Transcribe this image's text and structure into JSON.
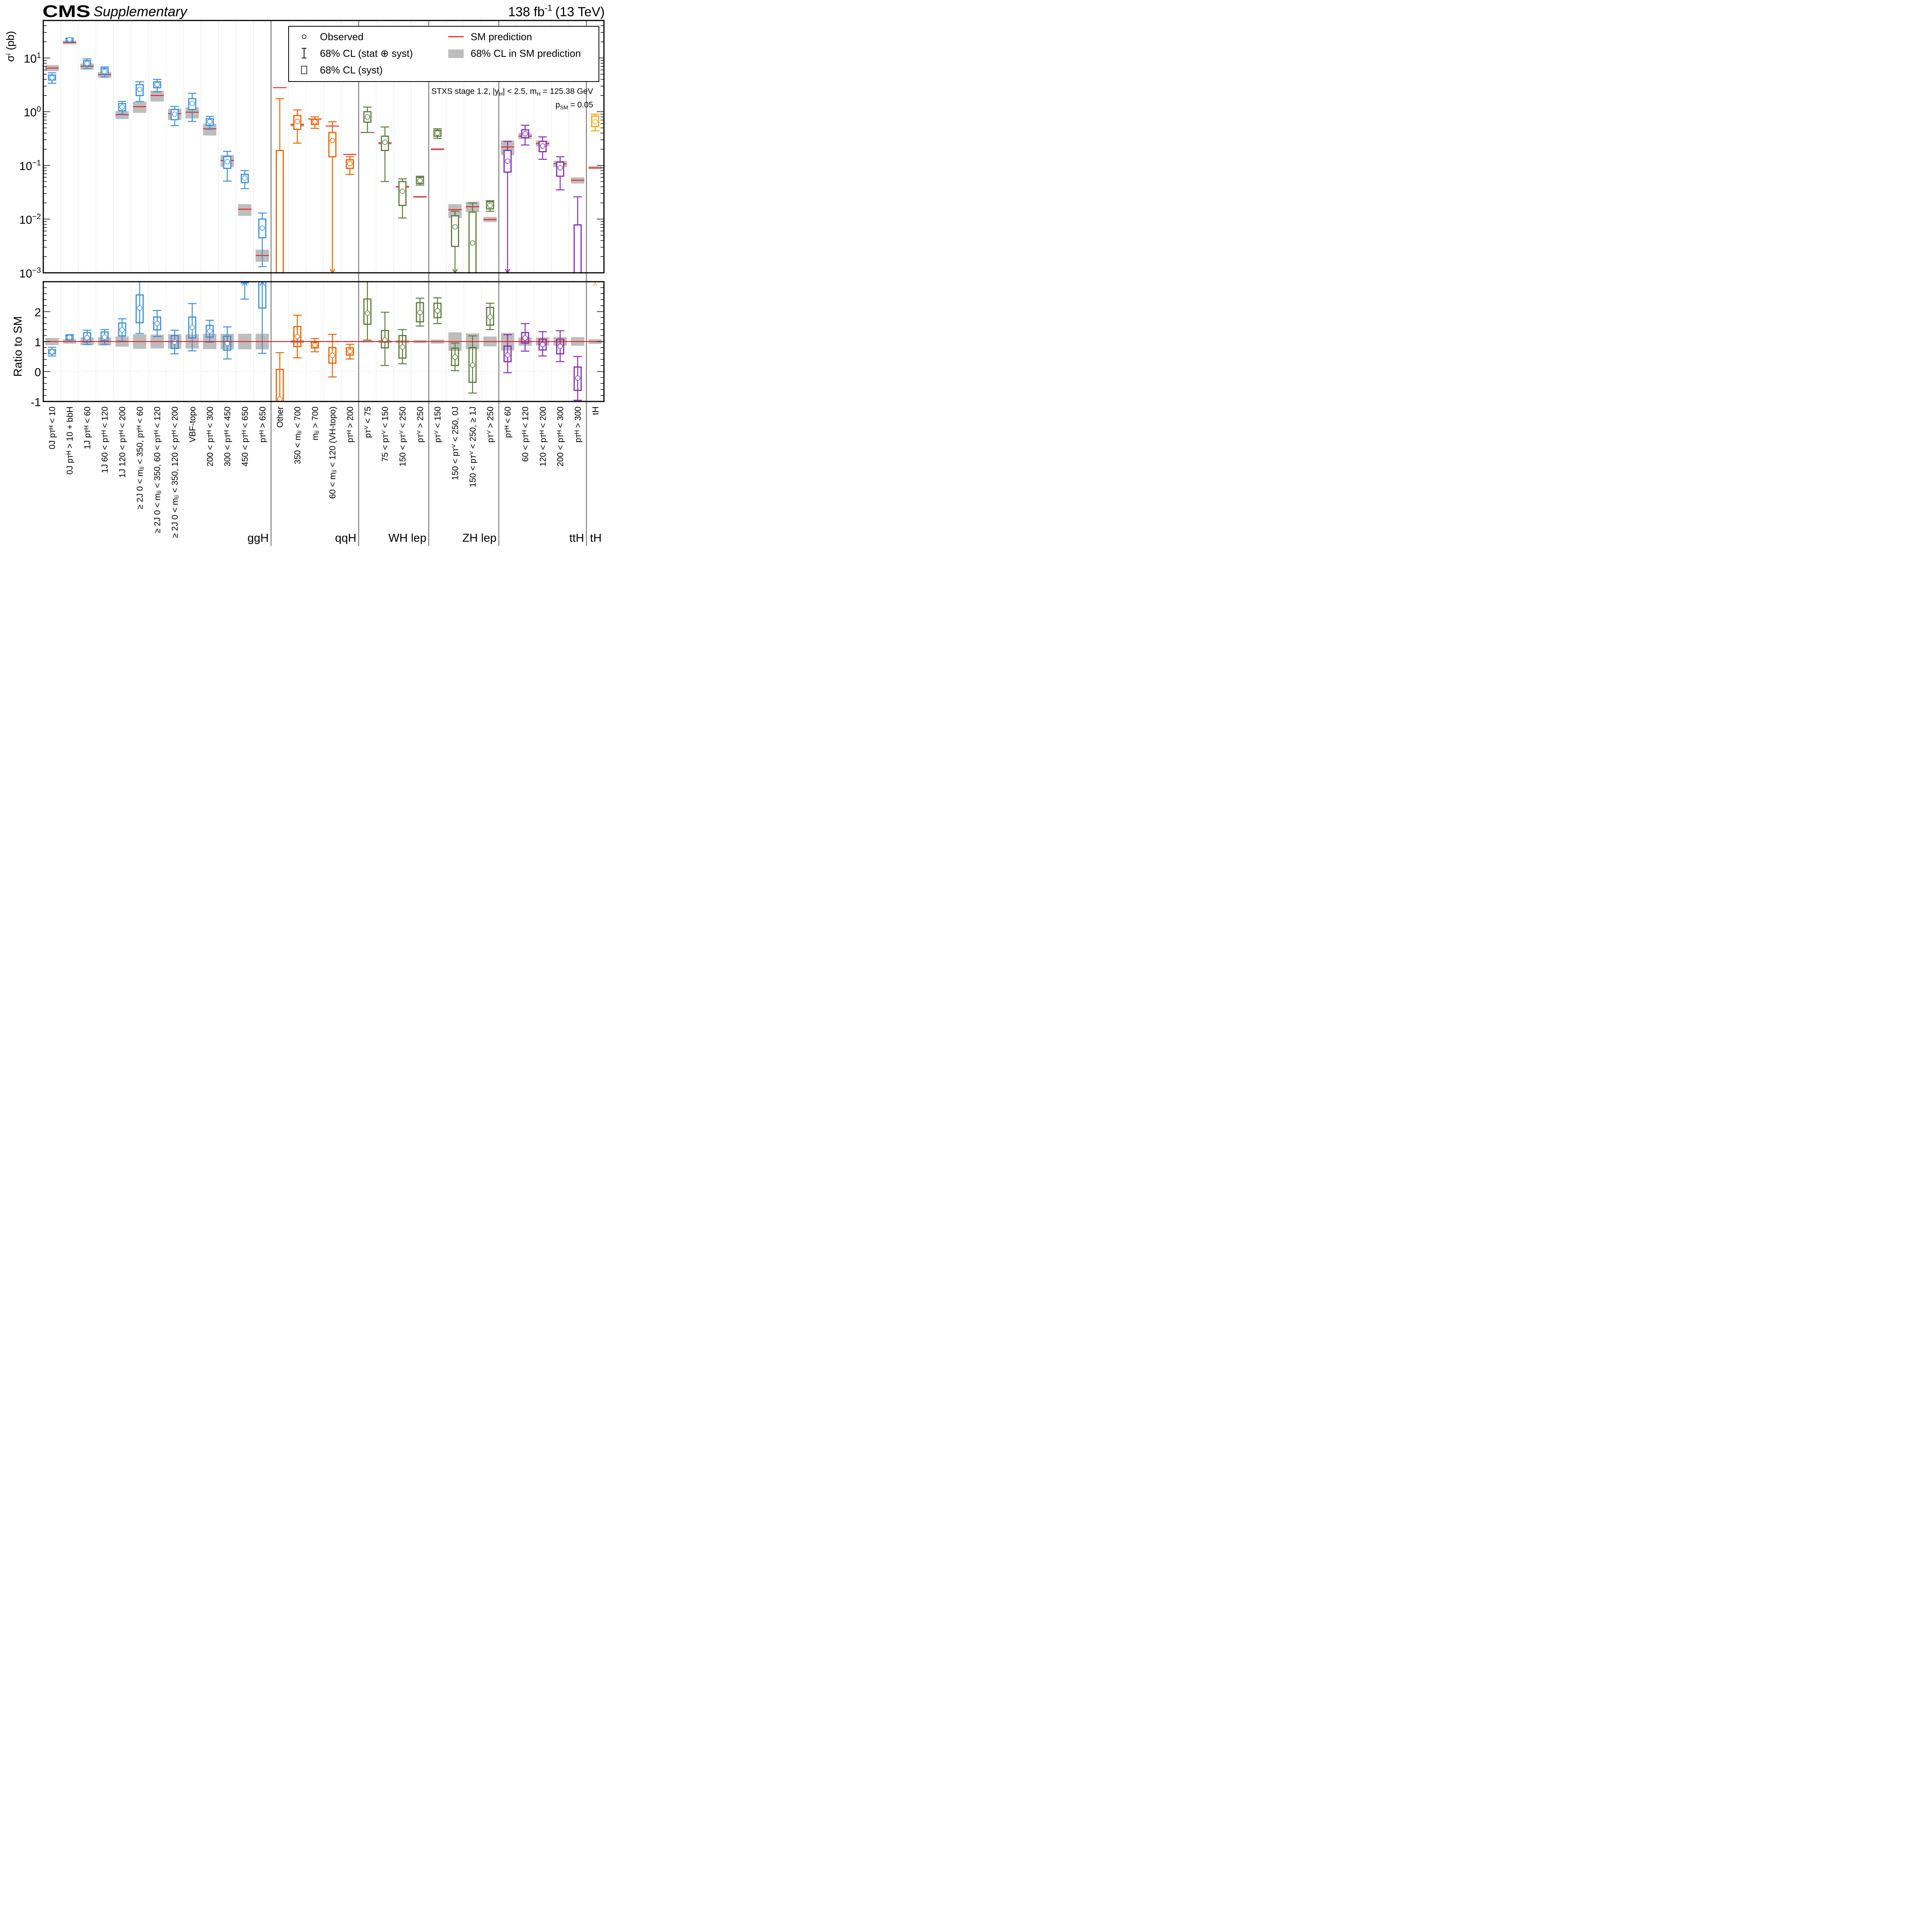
{
  "header": {
    "experiment": "CMS",
    "label": "Supplementary",
    "lumi": "138 fb",
    "lumi_sup": "-1",
    "energy": "(13 TeV)"
  },
  "legend": {
    "observed": "Observed",
    "total": "68% CL (stat ⊕ syst)",
    "syst": "68% CL (syst)",
    "sm": "SM prediction",
    "sm_unc": "68% CL in SM prediction"
  },
  "annotation": {
    "line1_pre": "STXS stage 1.2, |y",
    "line1_sub1": "H",
    "line1_mid": "| < 2.5, m",
    "line1_sub2": "H",
    "line1_post": " = 125.38 GeV",
    "line2_pre": "p",
    "line2_sub": "SM",
    "line2_post": " = 0.05"
  },
  "colors": {
    "ggH": "#3f90da",
    "qqH": "#e76300",
    "WH lep": "#5e7a3c",
    "ZH lep": "#5e7a3c",
    "ttH": "#832db6",
    "tH": "#f5a900",
    "sm_line": "#ff0000",
    "sm_band": "#bdbdbd"
  },
  "chart_data": [
    {
      "type": "scatter",
      "panel": "cross-section",
      "ylabel": "σ^i (pb)",
      "yscale": "log",
      "ylim": [
        0.001,
        50
      ],
      "yticks": [
        "10^1",
        "10^0",
        "10^-1",
        "10^-2",
        "10^-3"
      ],
      "grid": false
    },
    {
      "type": "scatter",
      "panel": "ratio",
      "ylabel": "Ratio to SM",
      "ylim": [
        -1,
        3
      ],
      "yticks": [
        "3",
        "2",
        "1",
        "0",
        "-1"
      ]
    }
  ],
  "groups": [
    {
      "name": "ggH",
      "start": 0,
      "end": 12
    },
    {
      "name": "qqH",
      "start": 13,
      "end": 17
    },
    {
      "name": "WH lep",
      "start": 18,
      "end": 21
    },
    {
      "name": "ZH lep",
      "start": 22,
      "end": 25
    },
    {
      "name": "ttH",
      "start": 26,
      "end": 30
    },
    {
      "name": "tH",
      "start": 31,
      "end": 31
    }
  ],
  "bins": [
    {
      "label": "0J pT^H < 10",
      "group": "ggH",
      "obs": 4.3,
      "tot": [
        3.4,
        5.3
      ],
      "syst": [
        3.9,
        4.8
      ],
      "sm": 6.5,
      "sm_band": [
        5.7,
        7.4
      ],
      "r": 0.66,
      "r_tot": [
        0.52,
        0.81
      ],
      "r_syst": [
        0.59,
        0.73
      ],
      "r_band": [
        0.88,
        1.12
      ]
    },
    {
      "label": "0J pT^H > 10 + bbH",
      "group": "ggH",
      "obs": 22,
      "tot": [
        20,
        23.5
      ],
      "syst": [
        20.8,
        23
      ],
      "sm": 19.5,
      "sm_band": [
        18,
        21
      ],
      "r": 1.14,
      "r_tot": [
        1.05,
        1.23
      ],
      "r_syst": [
        1.08,
        1.2
      ],
      "r_band": [
        0.93,
        1.08
      ]
    },
    {
      "label": "1J pT^H < 60",
      "group": "ggH",
      "obs": 7.9,
      "tot": [
        6.3,
        9.6
      ],
      "syst": [
        7.2,
        8.9
      ],
      "sm": 7.0,
      "sm_band": [
        6.1,
        7.9
      ],
      "r": 1.13,
      "r_tot": [
        0.9,
        1.38
      ],
      "r_syst": [
        0.99,
        1.3
      ],
      "r_band": [
        0.88,
        1.14
      ]
    },
    {
      "label": "1J 60 < pT^H < 120",
      "group": "ggH",
      "obs": 5.6,
      "tot": [
        4.4,
        6.8
      ],
      "syst": [
        5.0,
        6.4
      ],
      "sm": 4.9,
      "sm_band": [
        4.3,
        5.5
      ],
      "r": 1.15,
      "r_tot": [
        0.91,
        1.4
      ],
      "r_syst": [
        1.03,
        1.32
      ],
      "r_band": [
        0.87,
        1.14
      ]
    },
    {
      "label": "1J 120 < pT^H < 200",
      "group": "ggH",
      "obs": 1.22,
      "tot": [
        0.9,
        1.55
      ],
      "syst": [
        1.04,
        1.42
      ],
      "sm": 0.88,
      "sm_band": [
        0.73,
        1.02
      ],
      "r": 1.39,
      "r_tot": [
        1.02,
        1.76
      ],
      "r_syst": [
        1.19,
        1.62
      ],
      "r_band": [
        0.83,
        1.17
      ]
    },
    {
      "label": "≥ 2J 0 < m_jj < 350, pT^H < 60",
      "group": "ggH",
      "obs": 2.6,
      "tot": [
        1.55,
        3.6
      ],
      "syst": [
        2.0,
        3.2
      ],
      "sm": 1.24,
      "sm_band": [
        0.95,
        1.53
      ],
      "r": 2.12,
      "r_tot": [
        1.27,
        3.0
      ],
      "r_syst": [
        1.63,
        2.56
      ],
      "r_band": [
        0.76,
        1.24
      ]
    },
    {
      "label": "≥ 2J 0 < m_jj < 350, 60 < pT^H < 120",
      "group": "ggH",
      "obs": 3.2,
      "tot": [
        2.35,
        4.0
      ],
      "syst": [
        2.8,
        3.6
      ],
      "sm": 2.0,
      "sm_band": [
        1.55,
        2.45
      ],
      "r": 1.6,
      "r_tot": [
        1.17,
        2.04
      ],
      "r_syst": [
        1.39,
        1.82
      ],
      "r_band": [
        0.77,
        1.23
      ]
    },
    {
      "label": "≥ 2J 0 < m_jj < 350, 120 < pT^H < 200",
      "group": "ggH",
      "obs": 0.9,
      "tot": [
        0.55,
        1.25
      ],
      "syst": [
        0.71,
        1.1
      ],
      "sm": 0.92,
      "sm_band": [
        0.7,
        1.14
      ],
      "r": 0.98,
      "r_tot": [
        0.59,
        1.38
      ],
      "r_syst": [
        0.77,
        1.2
      ],
      "r_band": [
        0.76,
        1.24
      ]
    },
    {
      "label": "VBF-topo",
      "group": "ggH",
      "obs": 1.42,
      "tot": [
        0.66,
        2.2
      ],
      "syst": [
        1.1,
        1.75
      ],
      "sm": 0.98,
      "sm_band": [
        0.75,
        1.21
      ],
      "r": 1.47,
      "r_tot": [
        0.69,
        2.27
      ],
      "r_syst": [
        1.12,
        1.82
      ],
      "r_band": [
        0.77,
        1.24
      ]
    },
    {
      "label": "200 < pT^H < 300",
      "group": "ggH",
      "obs": 0.65,
      "tot": [
        0.47,
        0.82
      ],
      "syst": [
        0.56,
        0.74
      ],
      "sm": 0.48,
      "sm_band": [
        0.36,
        0.6
      ],
      "r": 1.35,
      "r_tot": [
        0.98,
        1.71
      ],
      "r_syst": [
        1.15,
        1.54
      ],
      "r_band": [
        0.75,
        1.26
      ]
    },
    {
      "label": "300 < pT^H < 450",
      "group": "ggH",
      "obs": 0.117,
      "tot": [
        0.051,
        0.183
      ],
      "syst": [
        0.088,
        0.146
      ],
      "sm": 0.124,
      "sm_band": [
        0.093,
        0.156
      ],
      "r": 0.94,
      "r_tot": [
        0.42,
        1.49
      ],
      "r_syst": [
        0.71,
        1.18
      ],
      "r_band": [
        0.74,
        1.26
      ]
    },
    {
      "label": "450 < pT^H < 650",
      "group": "ggH",
      "obs": 0.058,
      "tot": [
        0.037,
        0.08
      ],
      "syst": [
        0.048,
        0.068
      ],
      "sm": 0.0153,
      "sm_band": [
        0.0115,
        0.019
      ],
      "r": 3.8,
      "r_tot": [
        2.42,
        5.2
      ],
      "r_syst": [
        3.1,
        4.4
      ],
      "r_band": [
        0.74,
        1.26
      ],
      "r_arrow": "up"
    },
    {
      "label": "pT^H > 650",
      "group": "ggH",
      "obs": 0.0068,
      "tot": [
        0.0013,
        0.013
      ],
      "syst": [
        0.0045,
        0.01
      ],
      "sm": 0.0021,
      "sm_band": [
        0.0016,
        0.0027
      ],
      "r": 3.2,
      "r_tot": [
        0.61,
        6.1
      ],
      "r_syst": [
        2.12,
        4.7
      ],
      "r_band": [
        0.74,
        1.26
      ],
      "r_arrow": "up"
    },
    {
      "label": "Other",
      "group": "qqH",
      "obs": null,
      "tot": [
        0.001,
        1.75
      ],
      "syst": [
        0.001,
        0.19
      ],
      "sm": 2.8,
      "sm_band": [
        2.75,
        2.85
      ],
      "arrow": "down",
      "r": -0.92,
      "r_tot": [
        -1.0,
        0.63
      ],
      "r_syst": [
        -1.0,
        0.07
      ],
      "r_band": [
        0.99,
        1.01
      ]
    },
    {
      "label": "350 < m_jj < 700",
      "group": "qqH",
      "obs": 0.66,
      "tot": [
        0.26,
        1.08
      ],
      "syst": [
        0.47,
        0.85
      ],
      "sm": 0.57,
      "sm_band": [
        0.53,
        0.61
      ],
      "r": 1.17,
      "r_tot": [
        0.46,
        1.88
      ],
      "r_syst": [
        0.83,
        1.5
      ],
      "r_band": [
        0.94,
        1.06
      ]
    },
    {
      "label": "m_jj > 700",
      "group": "qqH",
      "obs": 0.65,
      "tot": [
        0.49,
        0.8
      ],
      "syst": [
        0.58,
        0.72
      ],
      "sm": 0.73,
      "sm_band": [
        0.72,
        0.75
      ],
      "r": 0.88,
      "r_tot": [
        0.66,
        1.1
      ],
      "r_syst": [
        0.79,
        0.98
      ],
      "r_band": [
        0.98,
        1.02
      ]
    },
    {
      "label": "60 < m_jj < 120 (VH-topo)",
      "group": "qqH",
      "obs": 0.29,
      "tot": [
        0.001,
        0.65
      ],
      "syst": [
        0.145,
        0.41
      ],
      "sm": 0.54,
      "sm_band": [
        0.53,
        0.55
      ],
      "arrow": "down",
      "r": 0.54,
      "r_tot": [
        -0.18,
        1.24
      ],
      "r_syst": [
        0.28,
        0.8
      ],
      "r_band": [
        0.98,
        1.02
      ]
    },
    {
      "label": "pT^H > 200",
      "group": "qqH",
      "obs": 0.108,
      "tot": [
        0.068,
        0.145
      ],
      "syst": [
        0.088,
        0.127
      ],
      "sm": 0.16,
      "sm_band": [
        0.157,
        0.163
      ],
      "r": 0.67,
      "r_tot": [
        0.42,
        0.91
      ],
      "r_syst": [
        0.55,
        0.79
      ],
      "r_band": [
        0.98,
        1.02
      ]
    },
    {
      "label": "pT^V < 75",
      "group": "WH lep",
      "obs": 0.8,
      "tot": [
        0.41,
        1.22
      ],
      "syst": [
        0.64,
        1.0
      ],
      "sm": 0.41,
      "sm_band": [
        0.4,
        0.42
      ],
      "r": 1.95,
      "r_tot": [
        1.05,
        3.0
      ],
      "r_syst": [
        1.58,
        2.42
      ],
      "r_band": [
        0.97,
        1.03
      ]
    },
    {
      "label": "75 < pT^V < 150",
      "group": "WH lep",
      "obs": 0.27,
      "tot": [
        0.05,
        0.52
      ],
      "syst": [
        0.19,
        0.35
      ],
      "sm": 0.26,
      "sm_band": [
        0.245,
        0.275
      ],
      "r": 1.05,
      "r_tot": [
        0.2,
        1.98
      ],
      "r_syst": [
        0.79,
        1.37
      ],
      "r_band": [
        0.95,
        1.05
      ]
    },
    {
      "label": "150 < pT^V < 250",
      "group": "WH lep",
      "obs": 0.033,
      "tot": [
        0.0105,
        0.056
      ],
      "syst": [
        0.018,
        0.05
      ],
      "sm": 0.04,
      "sm_band": [
        0.038,
        0.042
      ],
      "r": 0.82,
      "r_tot": [
        0.26,
        1.4
      ],
      "r_syst": [
        0.45,
        1.2
      ],
      "r_band": [
        0.95,
        1.05
      ]
    },
    {
      "label": "pT^V > 250",
      "group": "WH lep",
      "obs": 0.052,
      "tot": [
        0.043,
        0.063
      ],
      "syst": [
        0.046,
        0.06
      ],
      "sm": 0.026,
      "sm_band": [
        0.025,
        0.027
      ],
      "r": 1.97,
      "r_tot": [
        1.52,
        2.45
      ],
      "r_syst": [
        1.66,
        2.3
      ],
      "r_band": [
        0.95,
        1.05
      ]
    },
    {
      "label": "pT^V < 150",
      "group": "ZH lep",
      "obs": 0.4,
      "tot": [
        0.32,
        0.48
      ],
      "syst": [
        0.35,
        0.45
      ],
      "sm": 0.2,
      "sm_band": [
        0.19,
        0.21
      ],
      "r": 2.03,
      "r_tot": [
        1.6,
        2.46
      ],
      "r_syst": [
        1.8,
        2.28
      ],
      "r_band": [
        0.93,
        1.07
      ]
    },
    {
      "label": "150 < pT^V < 250, 0J",
      "group": "ZH lep",
      "obs": 0.0072,
      "tot": [
        0.001,
        0.014
      ],
      "syst": [
        0.0031,
        0.0115
      ],
      "sm": 0.015,
      "sm_band": [
        0.0105,
        0.019
      ],
      "arrow": "down",
      "r": 0.48,
      "r_tot": [
        0.03,
        0.95
      ],
      "r_syst": [
        0.2,
        0.78
      ],
      "r_band": [
        0.69,
        1.31
      ]
    },
    {
      "label": "150 < pT^V < 250, ≥ 1J",
      "group": "ZH lep",
      "obs": 0.0036,
      "tot": [
        0.001,
        0.02
      ],
      "syst": [
        0.001,
        0.0135
      ],
      "sm": 0.017,
      "sm_band": [
        0.0135,
        0.021
      ],
      "arrow": "down",
      "r": 0.21,
      "r_tot": [
        -0.72,
        1.19
      ],
      "r_syst": [
        -0.36,
        0.8
      ],
      "r_band": [
        0.74,
        1.27
      ]
    },
    {
      "label": "pT^V > 250",
      "group": "ZH lep",
      "obs": 0.018,
      "tot": [
        0.014,
        0.022
      ],
      "syst": [
        0.0155,
        0.021
      ],
      "sm": 0.0098,
      "sm_band": [
        0.0088,
        0.011
      ],
      "r": 1.82,
      "r_tot": [
        1.4,
        2.28
      ],
      "r_syst": [
        1.55,
        2.14
      ],
      "r_band": [
        0.84,
        1.17
      ]
    },
    {
      "label": "pT^H < 60",
      "group": "ttH",
      "obs": 0.12,
      "tot": [
        0.001,
        0.28
      ],
      "syst": [
        0.075,
        0.19
      ],
      "sm": 0.22,
      "sm_band": [
        0.155,
        0.29
      ],
      "arrow": "down",
      "r": 0.55,
      "r_tot": [
        -0.04,
        1.23
      ],
      "r_syst": [
        0.33,
        0.85
      ],
      "r_band": [
        0.7,
        1.29
      ]
    },
    {
      "label": "60 < pT^H < 120",
      "group": "ttH",
      "obs": 0.39,
      "tot": [
        0.24,
        0.56
      ],
      "syst": [
        0.33,
        0.46
      ],
      "sm": 0.35,
      "sm_band": [
        0.31,
        0.4
      ],
      "r": 1.12,
      "r_tot": [
        0.68,
        1.6
      ],
      "r_syst": [
        0.95,
        1.3
      ],
      "r_band": [
        0.86,
        1.14
      ]
    },
    {
      "label": "120 < pT^H < 200",
      "group": "ttH",
      "obs": 0.23,
      "tot": [
        0.13,
        0.34
      ],
      "syst": [
        0.18,
        0.28
      ],
      "sm": 0.255,
      "sm_band": [
        0.225,
        0.29
      ],
      "r": 0.9,
      "r_tot": [
        0.52,
        1.33
      ],
      "r_syst": [
        0.72,
        1.08
      ],
      "r_band": [
        0.87,
        1.14
      ]
    },
    {
      "label": "200 < pT^H < 300",
      "group": "ttH",
      "obs": 0.09,
      "tot": [
        0.035,
        0.145
      ],
      "syst": [
        0.063,
        0.115
      ],
      "sm": 0.107,
      "sm_band": [
        0.093,
        0.122
      ],
      "r": 0.84,
      "r_tot": [
        0.33,
        1.36
      ],
      "r_syst": [
        0.59,
        1.08
      ],
      "r_band": [
        0.86,
        1.15
      ]
    },
    {
      "label": "pT^H > 300",
      "group": "ttH",
      "obs": null,
      "tot": [
        0.001,
        0.026
      ],
      "syst": [
        0.001,
        0.0078
      ],
      "sm": 0.053,
      "sm_band": [
        0.046,
        0.06
      ],
      "arrow": "down",
      "r": -0.22,
      "r_tot": [
        -0.96,
        0.5
      ],
      "r_syst": [
        -0.63,
        0.15
      ],
      "r_band": [
        0.86,
        1.15
      ]
    },
    {
      "label": "tH",
      "group": "tH",
      "obs": 0.65,
      "tot": [
        0.44,
        0.9
      ],
      "syst": [
        0.53,
        0.83
      ],
      "sm": 0.09,
      "sm_band": [
        0.085,
        0.097
      ],
      "r": 7.2,
      "r_tot": [
        4.9,
        10
      ],
      "r_syst": [
        5.9,
        9.2
      ],
      "r_band": [
        0.92,
        1.08
      ],
      "r_arrow": "up"
    }
  ]
}
